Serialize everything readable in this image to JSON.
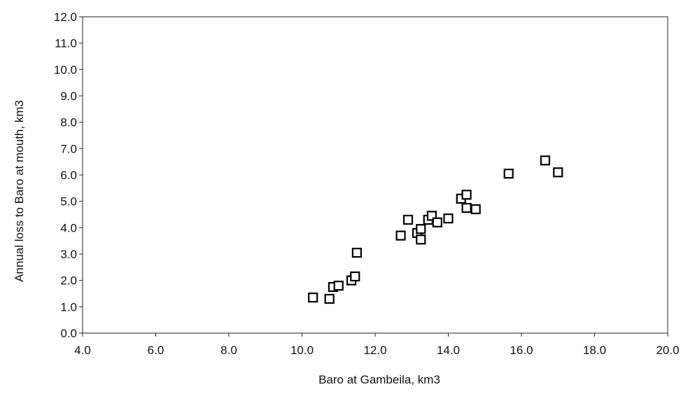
{
  "chart_data": {
    "type": "scatter",
    "title": "",
    "xlabel": "Baro at Gambeila, km3",
    "ylabel": "Annual loss to Baro at mouth, km3",
    "xlim": [
      4.0,
      20.0
    ],
    "ylim": [
      0.0,
      12.0
    ],
    "x_ticks": [
      "4.0",
      "6.0",
      "8.0",
      "10.0",
      "12.0",
      "14.0",
      "16.0",
      "18.0",
      "20.0"
    ],
    "y_ticks": [
      "0.0",
      "1.0",
      "2.0",
      "3.0",
      "4.0",
      "5.0",
      "6.0",
      "7.0",
      "8.0",
      "9.0",
      "10.0",
      "11.0",
      "12.0"
    ],
    "grid": false,
    "legend": "none",
    "marker": "open-square",
    "color": "#000000",
    "points": [
      {
        "x": 10.3,
        "y": 1.35
      },
      {
        "x": 10.75,
        "y": 1.3
      },
      {
        "x": 10.85,
        "y": 1.75
      },
      {
        "x": 11.0,
        "y": 1.8
      },
      {
        "x": 11.35,
        "y": 2.0
      },
      {
        "x": 11.45,
        "y": 2.15
      },
      {
        "x": 11.5,
        "y": 3.05
      },
      {
        "x": 12.7,
        "y": 3.7
      },
      {
        "x": 12.9,
        "y": 4.3
      },
      {
        "x": 13.15,
        "y": 3.8
      },
      {
        "x": 13.25,
        "y": 3.55
      },
      {
        "x": 13.25,
        "y": 3.95
      },
      {
        "x": 13.45,
        "y": 4.3
      },
      {
        "x": 13.55,
        "y": 4.45
      },
      {
        "x": 13.7,
        "y": 4.2
      },
      {
        "x": 14.0,
        "y": 4.35
      },
      {
        "x": 14.35,
        "y": 5.1
      },
      {
        "x": 14.5,
        "y": 5.25
      },
      {
        "x": 14.5,
        "y": 4.75
      },
      {
        "x": 14.75,
        "y": 4.7
      },
      {
        "x": 15.65,
        "y": 6.05
      },
      {
        "x": 16.65,
        "y": 6.55
      },
      {
        "x": 17.0,
        "y": 6.1
      }
    ]
  }
}
